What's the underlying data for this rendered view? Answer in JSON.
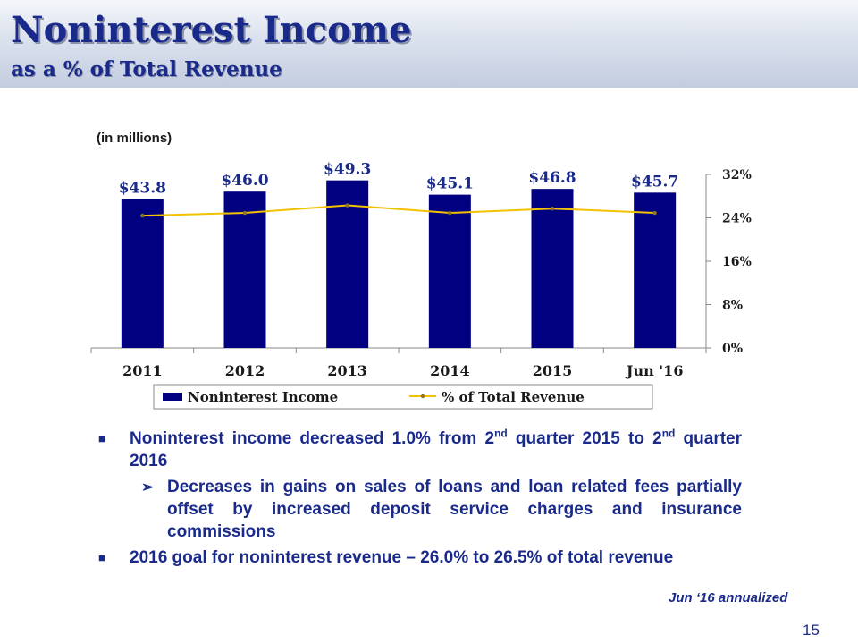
{
  "slide": {
    "title": "Noninterest Income",
    "subtitle": "as a % of Total Revenue",
    "units_note": "(in millions)",
    "footnote": "Jun ‘16 annualized",
    "page_number": "15"
  },
  "bullets": {
    "b1_part1": "Noninterest income decreased  1.0%  from  2",
    "b1_sup1": "nd",
    "b1_part2": "  quarter  2015  to  2",
    "b1_sup2": "nd",
    "b1_part3": " quarter 2016",
    "sub1": "Decreases in  gains  on  sales  of loans  and  loan  related  fees  partially  offset  by  increased  deposit  service  charges  and  insurance commissions",
    "b2": "2016 goal for noninterest revenue – 26.0% to 26.5% of total revenue"
  },
  "colors": {
    "bar": "#000080",
    "line": "#f2c200",
    "title": "#1a2a8a"
  },
  "chart_data": {
    "type": "bar",
    "categories": [
      "2011",
      "2012",
      "2013",
      "2014",
      "2015",
      "Jun '16"
    ],
    "series": [
      {
        "name": "Noninterest Income",
        "type": "bar",
        "values": [
          43.8,
          46.0,
          49.3,
          45.1,
          46.8,
          45.7
        ],
        "labels": [
          "$43.8",
          "$46.0",
          "$49.3",
          "$45.1",
          "$46.8",
          "$45.7"
        ]
      },
      {
        "name": "% of Total Revenue",
        "type": "line",
        "axis": "right",
        "values": [
          24.4,
          24.9,
          26.3,
          24.9,
          25.7,
          24.9
        ]
      }
    ],
    "y2_ticks": [
      "0%",
      "8%",
      "16%",
      "24%",
      "32%"
    ],
    "y2lim": [
      0,
      32
    ],
    "legend": "bottom"
  }
}
